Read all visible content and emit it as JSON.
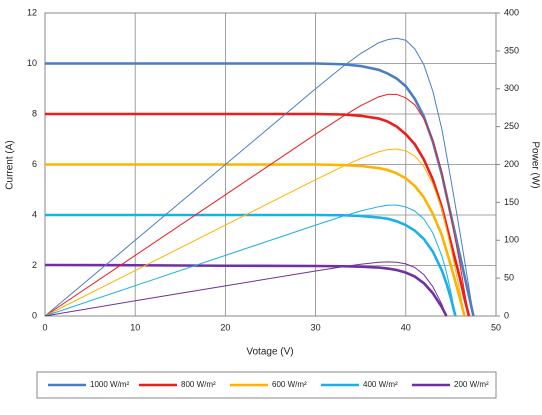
{
  "chart_data": {
    "type": "line",
    "x_label": "Votage (V)",
    "y_label": "Current (A)",
    "y2_label": "Power (W)",
    "x": [
      0,
      10,
      20,
      30,
      33,
      35,
      37,
      38,
      39,
      40,
      41,
      42,
      43,
      44,
      44.5,
      45,
      45.5,
      46,
      46.5,
      47,
      47.5
    ],
    "xlim": [
      0,
      50
    ],
    "xticks": [
      0,
      10,
      20,
      30,
      40,
      50
    ],
    "ylim": [
      0,
      12
    ],
    "yticks": [
      0,
      2,
      4,
      6,
      8,
      10,
      12
    ],
    "y2lim": [
      0,
      400
    ],
    "y2ticks": [
      0,
      50,
      100,
      150,
      200,
      250,
      300,
      350,
      400
    ],
    "grid": true,
    "legend": "bottom",
    "series": [
      {
        "name": "1000 W/m²",
        "color": "#4a7ec2",
        "values": [
          10,
          10,
          10,
          10,
          9.97,
          9.9,
          9.75,
          9.6,
          9.4,
          9.1,
          8.6,
          7.9,
          6.9,
          5.6,
          4.8,
          4.0,
          3.2,
          2.4,
          1.6,
          0.8,
          0
        ]
      },
      {
        "name": "800 W/m²",
        "color": "#ee1c1c",
        "values": [
          8,
          8,
          8,
          8,
          7.98,
          7.93,
          7.82,
          7.7,
          7.5,
          7.2,
          6.8,
          6.2,
          5.4,
          4.3,
          3.6,
          2.9,
          2.2,
          1.5,
          0.7,
          0,
          null
        ]
      },
      {
        "name": "600 W/m²",
        "color": "#ffb300",
        "values": [
          6,
          6,
          6,
          6,
          5.98,
          5.94,
          5.86,
          5.78,
          5.65,
          5.45,
          5.15,
          4.7,
          4.05,
          3.2,
          2.6,
          2.0,
          1.35,
          0.7,
          0,
          null,
          null
        ]
      },
      {
        "name": "400 W/m²",
        "color": "#1ab0e8",
        "values": [
          4,
          4,
          4,
          4,
          3.99,
          3.96,
          3.9,
          3.85,
          3.75,
          3.6,
          3.38,
          3.05,
          2.55,
          1.8,
          1.3,
          0.7,
          0,
          null,
          null,
          null,
          null
        ]
      },
      {
        "name": "200 W/m²",
        "color": "#7030a0",
        "values": [
          2.02,
          2.01,
          1.99,
          1.98,
          1.97,
          1.95,
          1.92,
          1.88,
          1.82,
          1.72,
          1.56,
          1.3,
          0.9,
          0.35,
          0,
          null,
          null,
          null,
          null,
          null,
          null
        ]
      },
      {
        "color": "#4a7ec2",
        "axis": "y2",
        "values": [
          0,
          100,
          200,
          300,
          329,
          346.5,
          360.8,
          364.8,
          366.6,
          364,
          352.6,
          331.8,
          296.7,
          246.4,
          213.6,
          180,
          145.6,
          110.4,
          74.4,
          37.6,
          0
        ]
      },
      {
        "color": "#ee1c1c",
        "axis": "y2",
        "values": [
          0,
          80,
          160,
          240,
          263.3,
          277.6,
          289.3,
          292.6,
          292.5,
          288,
          278.8,
          260.4,
          232.2,
          189.2,
          160.2,
          130.5,
          100.1,
          69,
          32.6,
          0,
          null
        ]
      },
      {
        "color": "#ffb300",
        "axis": "y2",
        "values": [
          0,
          60,
          120,
          180,
          197.3,
          207.9,
          216.8,
          219.6,
          220.4,
          218,
          211.2,
          197.4,
          174.2,
          140.8,
          115.7,
          90,
          61.4,
          32.2,
          0,
          null,
          null
        ]
      },
      {
        "color": "#1ab0e8",
        "axis": "y2",
        "values": [
          0,
          40,
          80,
          120,
          131.7,
          138.6,
          144.3,
          146.3,
          146.3,
          144,
          138.6,
          128.1,
          109.7,
          79.2,
          57.9,
          31.5,
          0,
          null,
          null,
          null,
          null
        ]
      },
      {
        "color": "#7030a0",
        "axis": "y2",
        "values": [
          0,
          20.1,
          39.8,
          59.4,
          65,
          68.3,
          71,
          71.4,
          71,
          68.8,
          64,
          54.6,
          38.7,
          15.4,
          0,
          null,
          null,
          null,
          null,
          null,
          null
        ]
      }
    ]
  }
}
